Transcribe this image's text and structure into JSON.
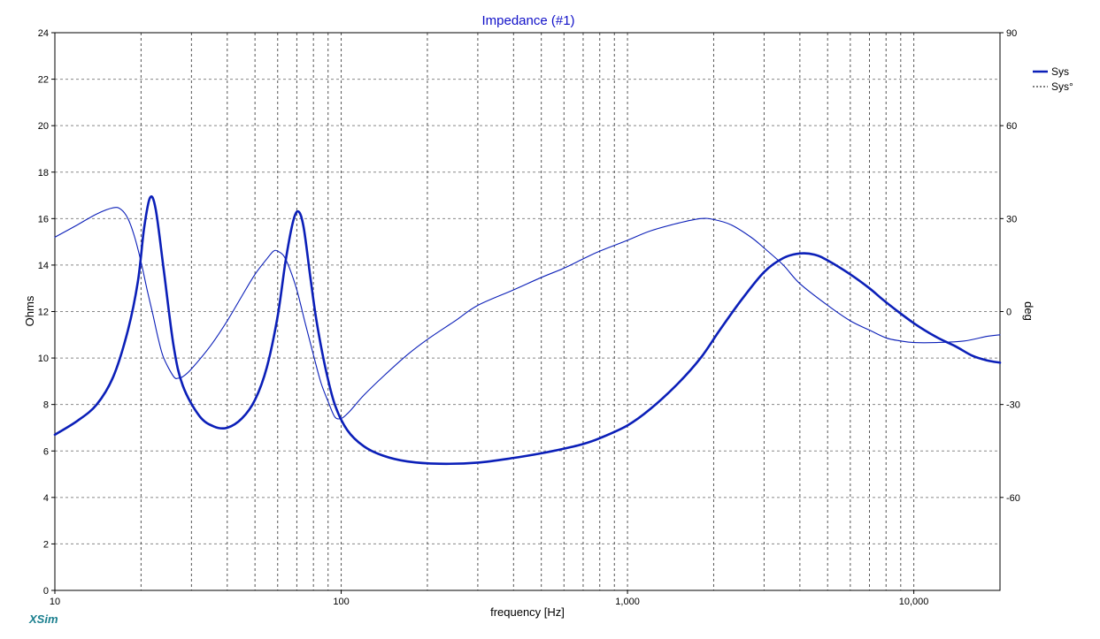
{
  "app": {
    "brand": "XSim",
    "brand_color": "#1a7f8e"
  },
  "chart_data": {
    "type": "line",
    "title": "Impedance (#1)",
    "title_color": "#1010c8",
    "xlabel": "frequency [Hz]",
    "ylabel": "Ohms",
    "y2label": "deg",
    "x_scale": "log",
    "xlim": [
      10,
      20000
    ],
    "ylim": [
      0,
      24
    ],
    "y2lim": [
      -90,
      90
    ],
    "grid": true,
    "legend_position": "right",
    "x_ticks": [
      {
        "value": 10,
        "label": "10"
      },
      {
        "value": 100,
        "label": "100"
      },
      {
        "value": 1000,
        "label": "1,000"
      },
      {
        "value": 10000,
        "label": "10,000"
      }
    ],
    "y_ticks": [
      {
        "value": 0,
        "label": "0"
      },
      {
        "value": 2,
        "label": "2"
      },
      {
        "value": 4,
        "label": "4"
      },
      {
        "value": 6,
        "label": "6"
      },
      {
        "value": 8,
        "label": "8"
      },
      {
        "value": 10,
        "label": "10"
      },
      {
        "value": 12,
        "label": "12"
      },
      {
        "value": 14,
        "label": "14"
      },
      {
        "value": 16,
        "label": "16"
      },
      {
        "value": 18,
        "label": "18"
      },
      {
        "value": 20,
        "label": "20"
      },
      {
        "value": 22,
        "label": "22"
      },
      {
        "value": 24,
        "label": "24"
      }
    ],
    "y2_ticks": [
      {
        "value": 90,
        "label": "90"
      },
      {
        "value": 60,
        "label": "60"
      },
      {
        "value": 30,
        "label": "30"
      },
      {
        "value": 0,
        "label": "0"
      },
      {
        "value": -30,
        "label": "-30"
      },
      {
        "value": -60,
        "label": "-60"
      }
    ],
    "series": [
      {
        "name": "Sys",
        "axis": "left",
        "style": "solid",
        "color": "#0b1fb8",
        "points": [
          [
            10,
            6.7
          ],
          [
            12,
            7.3
          ],
          [
            14,
            8.0
          ],
          [
            16,
            9.2
          ],
          [
            18,
            11.2
          ],
          [
            19.5,
            13.3
          ],
          [
            20.5,
            15.6
          ],
          [
            21.5,
            16.9
          ],
          [
            22.5,
            16.4
          ],
          [
            24,
            13.8
          ],
          [
            26,
            10.5
          ],
          [
            28,
            8.8
          ],
          [
            32,
            7.5
          ],
          [
            36,
            7.05
          ],
          [
            40,
            7.0
          ],
          [
            45,
            7.4
          ],
          [
            50,
            8.2
          ],
          [
            55,
            9.6
          ],
          [
            60,
            11.8
          ],
          [
            64,
            14.2
          ],
          [
            68,
            15.9
          ],
          [
            71,
            16.3
          ],
          [
            74,
            15.6
          ],
          [
            78,
            13.5
          ],
          [
            82,
            11.6
          ],
          [
            88,
            9.6
          ],
          [
            95,
            8.0
          ],
          [
            105,
            6.9
          ],
          [
            120,
            6.2
          ],
          [
            140,
            5.8
          ],
          [
            170,
            5.55
          ],
          [
            220,
            5.45
          ],
          [
            300,
            5.5
          ],
          [
            400,
            5.7
          ],
          [
            500,
            5.9
          ],
          [
            600,
            6.1
          ],
          [
            700,
            6.3
          ],
          [
            800,
            6.55
          ],
          [
            1000,
            7.1
          ],
          [
            1200,
            7.8
          ],
          [
            1500,
            8.9
          ],
          [
            1800,
            10.0
          ],
          [
            2100,
            11.2
          ],
          [
            2500,
            12.5
          ],
          [
            3000,
            13.7
          ],
          [
            3500,
            14.3
          ],
          [
            4000,
            14.5
          ],
          [
            4500,
            14.45
          ],
          [
            5000,
            14.2
          ],
          [
            6000,
            13.6
          ],
          [
            7000,
            13.0
          ],
          [
            8000,
            12.4
          ],
          [
            10000,
            11.5
          ],
          [
            12000,
            10.9
          ],
          [
            14000,
            10.5
          ],
          [
            16000,
            10.1
          ],
          [
            18000,
            9.9
          ],
          [
            20000,
            9.8
          ]
        ]
      },
      {
        "name": "Sys°",
        "axis": "right",
        "style": "dashed",
        "color": "#0b1fb8",
        "points": [
          [
            10,
            24
          ],
          [
            12,
            28
          ],
          [
            14,
            31.5
          ],
          [
            16,
            33.5
          ],
          [
            17,
            33
          ],
          [
            18,
            30
          ],
          [
            19,
            24
          ],
          [
            20,
            16
          ],
          [
            21,
            7
          ],
          [
            22,
            -1
          ],
          [
            23,
            -9
          ],
          [
            24,
            -15
          ],
          [
            26,
            -21
          ],
          [
            27,
            -21.5
          ],
          [
            28,
            -21
          ],
          [
            30,
            -18.5
          ],
          [
            35,
            -11
          ],
          [
            40,
            -3
          ],
          [
            45,
            5
          ],
          [
            50,
            12
          ],
          [
            55,
            17
          ],
          [
            58,
            19.5
          ],
          [
            60,
            19.5
          ],
          [
            63,
            18
          ],
          [
            66,
            14
          ],
          [
            70,
            7
          ],
          [
            75,
            -4
          ],
          [
            80,
            -14
          ],
          [
            85,
            -23
          ],
          [
            90,
            -29
          ],
          [
            95,
            -34
          ],
          [
            100,
            -34.5
          ],
          [
            105,
            -33
          ],
          [
            110,
            -31
          ],
          [
            120,
            -27
          ],
          [
            140,
            -21
          ],
          [
            170,
            -14
          ],
          [
            200,
            -9
          ],
          [
            250,
            -3
          ],
          [
            300,
            2
          ],
          [
            400,
            7
          ],
          [
            500,
            11
          ],
          [
            600,
            14
          ],
          [
            700,
            17
          ],
          [
            800,
            19.5
          ],
          [
            1000,
            23
          ],
          [
            1200,
            26
          ],
          [
            1500,
            28.5
          ],
          [
            1800,
            30
          ],
          [
            2000,
            29.7
          ],
          [
            2300,
            28
          ],
          [
            2700,
            24
          ],
          [
            3000,
            20.5
          ],
          [
            3500,
            15
          ],
          [
            4000,
            9
          ],
          [
            5000,
            2
          ],
          [
            6000,
            -3
          ],
          [
            7000,
            -6
          ],
          [
            8000,
            -8.5
          ],
          [
            9000,
            -9.5
          ],
          [
            10000,
            -10
          ],
          [
            12000,
            -10
          ],
          [
            15000,
            -9.5
          ],
          [
            18000,
            -8
          ],
          [
            20000,
            -7.5
          ]
        ]
      }
    ]
  }
}
